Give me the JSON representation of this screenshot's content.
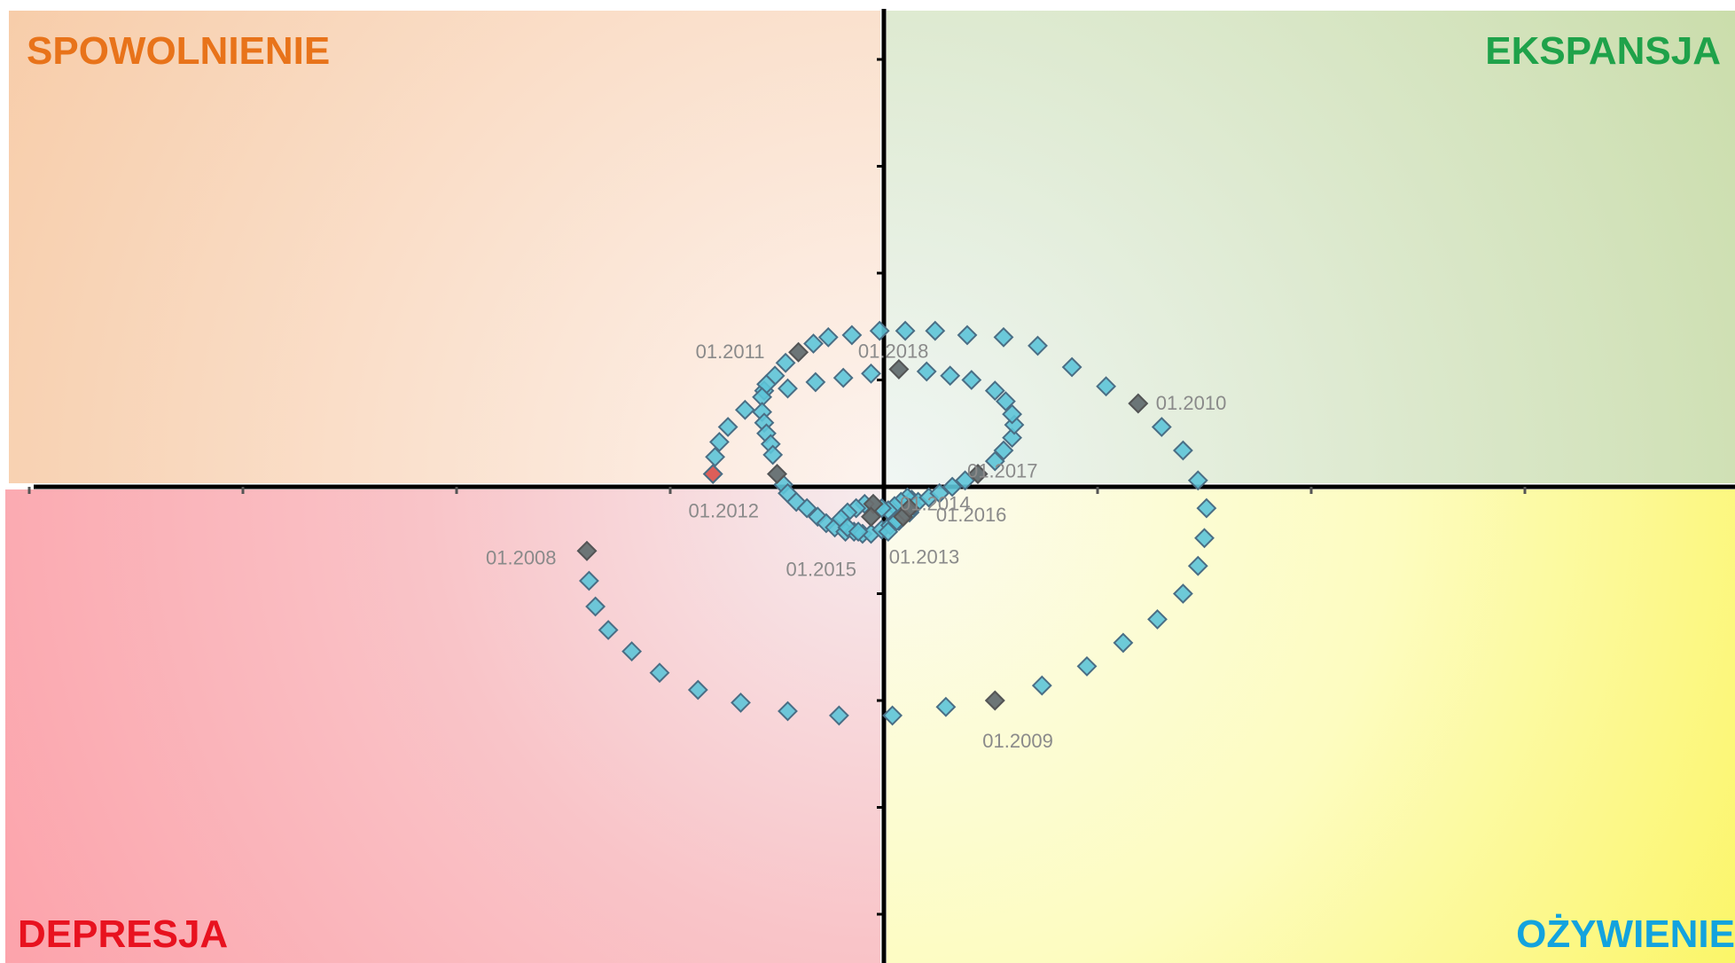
{
  "chart_data": {
    "type": "scatter",
    "title": "",
    "xlabel": "",
    "ylabel": "",
    "xlim": [
      -4.1,
      4.0
    ],
    "ylim": [
      -2.25,
      2.25
    ],
    "grid": false,
    "quadrants": {
      "top_left": {
        "label": "SPOWOLNIENIE",
        "color": "#E8731A"
      },
      "top_right": {
        "label": "EKSPANSJA",
        "color": "#1FA24A"
      },
      "bottom_left": {
        "label": "DEPRESJA",
        "color": "#E8121F"
      },
      "bottom_right": {
        "label": "OŻYWIENIE",
        "color": "#13A3DE"
      }
    },
    "colors": {
      "marker_fill": "#5DC4D8",
      "marker_stroke": "#4A6E85",
      "highlight_fill": "#6B6B6B",
      "last_point_fill": "#E8524A",
      "label_text": "#8A8A8A"
    },
    "labeled_points": [
      {
        "label": "01.2008",
        "x": -1.39,
        "y": -0.3
      },
      {
        "label": "01.2009",
        "x": 0.52,
        "y": -1.0
      },
      {
        "label": "01.2010",
        "x": 1.19,
        "y": 0.39
      },
      {
        "label": "01.2011",
        "x": -0.4,
        "y": 0.63
      },
      {
        "label": "01.2012",
        "x": -0.5,
        "y": 0.06
      },
      {
        "label": "01.2013",
        "x": 0.09,
        "y": -0.14
      },
      {
        "label": "01.2014",
        "x": -0.05,
        "y": -0.08
      },
      {
        "label": "01.2015",
        "x": -0.06,
        "y": -0.14
      },
      {
        "label": "01.2016",
        "x": 0.12,
        "y": -0.1
      },
      {
        "label": "01.2017",
        "x": 0.44,
        "y": 0.06
      },
      {
        "label": "01.2018",
        "x": 0.07,
        "y": 0.55
      }
    ],
    "points": [
      {
        "x": -1.39,
        "y": -0.3
      },
      {
        "x": -1.38,
        "y": -0.44
      },
      {
        "x": -1.35,
        "y": -0.56
      },
      {
        "x": -1.29,
        "y": -0.67
      },
      {
        "x": -1.18,
        "y": -0.77
      },
      {
        "x": -1.05,
        "y": -0.87
      },
      {
        "x": -0.87,
        "y": -0.95
      },
      {
        "x": -0.67,
        "y": -1.01
      },
      {
        "x": -0.45,
        "y": -1.05
      },
      {
        "x": -0.21,
        "y": -1.07
      },
      {
        "x": 0.04,
        "y": -1.07
      },
      {
        "x": 0.29,
        "y": -1.03
      },
      {
        "x": 0.52,
        "y": -1.0
      },
      {
        "x": 0.74,
        "y": -0.93
      },
      {
        "x": 0.95,
        "y": -0.84
      },
      {
        "x": 1.12,
        "y": -0.73
      },
      {
        "x": 1.28,
        "y": -0.62
      },
      {
        "x": 1.4,
        "y": -0.5
      },
      {
        "x": 1.47,
        "y": -0.37
      },
      {
        "x": 1.5,
        "y": -0.24
      },
      {
        "x": 1.51,
        "y": -0.1
      },
      {
        "x": 1.47,
        "y": 0.03
      },
      {
        "x": 1.4,
        "y": 0.17
      },
      {
        "x": 1.3,
        "y": 0.28
      },
      {
        "x": 1.19,
        "y": 0.39
      },
      {
        "x": 1.04,
        "y": 0.47
      },
      {
        "x": 0.88,
        "y": 0.56
      },
      {
        "x": 0.72,
        "y": 0.66
      },
      {
        "x": 0.56,
        "y": 0.7
      },
      {
        "x": 0.39,
        "y": 0.71
      },
      {
        "x": 0.24,
        "y": 0.73
      },
      {
        "x": 0.1,
        "y": 0.73
      },
      {
        "x": -0.02,
        "y": 0.73
      },
      {
        "x": -0.15,
        "y": 0.71
      },
      {
        "x": -0.26,
        "y": 0.7
      },
      {
        "x": -0.33,
        "y": 0.67
      },
      {
        "x": -0.4,
        "y": 0.63
      },
      {
        "x": -0.46,
        "y": 0.58
      },
      {
        "x": -0.51,
        "y": 0.52
      },
      {
        "x": -0.56,
        "y": 0.45
      },
      {
        "x": -0.65,
        "y": 0.36
      },
      {
        "x": -0.73,
        "y": 0.28
      },
      {
        "x": -0.77,
        "y": 0.21
      },
      {
        "x": -0.79,
        "y": 0.14
      },
      {
        "x": -0.8,
        "y": 0.06
      },
      {
        "x": -0.55,
        "y": 0.48
      },
      {
        "x": -0.57,
        "y": 0.42
      },
      {
        "x": -0.57,
        "y": 0.35
      },
      {
        "x": -0.56,
        "y": 0.3
      },
      {
        "x": -0.55,
        "y": 0.25
      },
      {
        "x": -0.53,
        "y": 0.2
      },
      {
        "x": -0.52,
        "y": 0.15
      },
      {
        "x": -0.5,
        "y": 0.06
      },
      {
        "x": -0.47,
        "y": 0.01
      },
      {
        "x": -0.45,
        "y": -0.03
      },
      {
        "x": -0.41,
        "y": -0.07
      },
      {
        "x": -0.36,
        "y": -0.1
      },
      {
        "x": -0.31,
        "y": -0.14
      },
      {
        "x": -0.27,
        "y": -0.17
      },
      {
        "x": -0.23,
        "y": -0.19
      },
      {
        "x": -0.18,
        "y": -0.21
      },
      {
        "x": -0.14,
        "y": -0.21
      },
      {
        "x": -0.1,
        "y": -0.22
      },
      {
        "x": -0.06,
        "y": -0.22
      },
      {
        "x": -0.01,
        "y": -0.2
      },
      {
        "x": 0.03,
        "y": -0.18
      },
      {
        "x": 0.07,
        "y": -0.16
      },
      {
        "x": 0.09,
        "y": -0.14
      },
      {
        "x": 0.12,
        "y": -0.12
      },
      {
        "x": 0.14,
        "y": -0.09
      },
      {
        "x": 0.13,
        "y": -0.06
      },
      {
        "x": 0.11,
        "y": -0.05
      },
      {
        "x": 0.08,
        "y": -0.07
      },
      {
        "x": 0.05,
        "y": -0.09
      },
      {
        "x": 0.02,
        "y": -0.11
      },
      {
        "x": -0.01,
        "y": -0.1
      },
      {
        "x": -0.05,
        "y": -0.08
      },
      {
        "x": -0.09,
        "y": -0.08
      },
      {
        "x": -0.13,
        "y": -0.1
      },
      {
        "x": -0.17,
        "y": -0.12
      },
      {
        "x": -0.2,
        "y": -0.15
      },
      {
        "x": -0.17,
        "y": -0.19
      },
      {
        "x": -0.12,
        "y": -0.21
      },
      {
        "x": -0.06,
        "y": -0.14
      },
      {
        "x": 0.02,
        "y": -0.21
      },
      {
        "x": 0.06,
        "y": -0.16
      },
      {
        "x": 0.1,
        "y": -0.12
      },
      {
        "x": 0.12,
        "y": -0.1
      },
      {
        "x": 0.16,
        "y": -0.07
      },
      {
        "x": 0.21,
        "y": -0.05
      },
      {
        "x": 0.26,
        "y": -0.03
      },
      {
        "x": 0.32,
        "y": 0.0
      },
      {
        "x": 0.38,
        "y": 0.03
      },
      {
        "x": 0.44,
        "y": 0.06
      },
      {
        "x": 0.52,
        "y": 0.12
      },
      {
        "x": 0.56,
        "y": 0.17
      },
      {
        "x": 0.6,
        "y": 0.23
      },
      {
        "x": 0.61,
        "y": 0.29
      },
      {
        "x": 0.6,
        "y": 0.34
      },
      {
        "x": 0.57,
        "y": 0.4
      },
      {
        "x": 0.52,
        "y": 0.45
      },
      {
        "x": 0.41,
        "y": 0.5
      },
      {
        "x": 0.31,
        "y": 0.52
      },
      {
        "x": 0.2,
        "y": 0.54
      },
      {
        "x": 0.07,
        "y": 0.55
      },
      {
        "x": -0.06,
        "y": 0.53
      },
      {
        "x": -0.19,
        "y": 0.51
      },
      {
        "x": -0.32,
        "y": 0.49
      },
      {
        "x": -0.45,
        "y": 0.46
      },
      {
        "x": -0.8,
        "y": 0.06
      }
    ]
  }
}
